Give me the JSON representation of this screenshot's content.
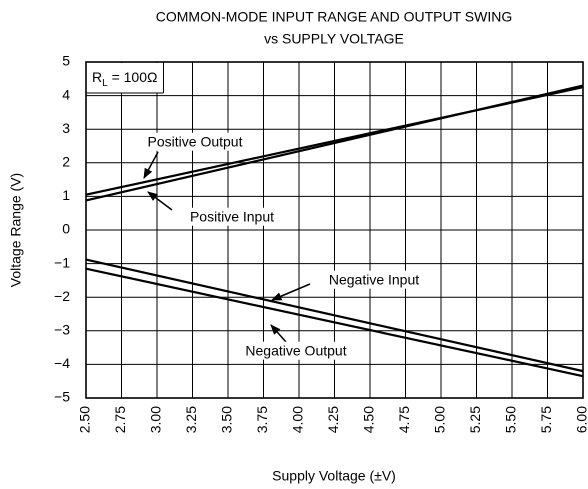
{
  "chart_data": {
    "type": "line",
    "title_lines": [
      "COMMON-MODE INPUT RANGE AND OUTPUT SWING",
      "vs SUPPLY VOLTAGE"
    ],
    "x_label": "Supply Voltage (±V)",
    "y_label": "Voltage Range (V)",
    "annotation": {
      "main": "R",
      "sub": "L",
      "rest": " = 100Ω"
    },
    "x": [
      2.5,
      6.0
    ],
    "series": [
      {
        "name": "Positive Output",
        "color": "#000000",
        "values": [
          1.05,
          4.25
        ]
      },
      {
        "name": "Positive Input",
        "color": "#000000",
        "values": [
          0.88,
          4.3
        ]
      },
      {
        "name": "Negative Input",
        "color": "#000000",
        "values": [
          -0.88,
          -4.2
        ]
      },
      {
        "name": "Negative Output",
        "color": "#000000",
        "values": [
          -1.15,
          -4.35
        ]
      }
    ],
    "xlim": [
      2.5,
      6.0
    ],
    "xticks": [
      {
        "value": 2.5,
        "label": "2.50"
      },
      {
        "value": 2.75,
        "label": "2.75"
      },
      {
        "value": 3.0,
        "label": "3.00"
      },
      {
        "value": 3.25,
        "label": "3.25"
      },
      {
        "value": 3.5,
        "label": "3.50"
      },
      {
        "value": 3.75,
        "label": "3.75"
      },
      {
        "value": 4.0,
        "label": "4.00"
      },
      {
        "value": 4.25,
        "label": "4.25"
      },
      {
        "value": 4.5,
        "label": "4.50"
      },
      {
        "value": 4.75,
        "label": "4.75"
      },
      {
        "value": 5.0,
        "label": "5.00"
      },
      {
        "value": 5.25,
        "label": "5.25"
      },
      {
        "value": 5.5,
        "label": "5.50"
      },
      {
        "value": 5.75,
        "label": "5.75"
      },
      {
        "value": 6.0,
        "label": "6.00"
      }
    ],
    "ylim": [
      -5,
      5
    ],
    "yticks": [
      {
        "value": -5,
        "label": "−5"
      },
      {
        "value": -4,
        "label": "−4"
      },
      {
        "value": -3,
        "label": "−3"
      },
      {
        "value": -2,
        "label": "−2"
      },
      {
        "value": -1,
        "label": "−1"
      },
      0,
      1,
      2,
      3,
      4,
      5
    ],
    "grid": true
  }
}
